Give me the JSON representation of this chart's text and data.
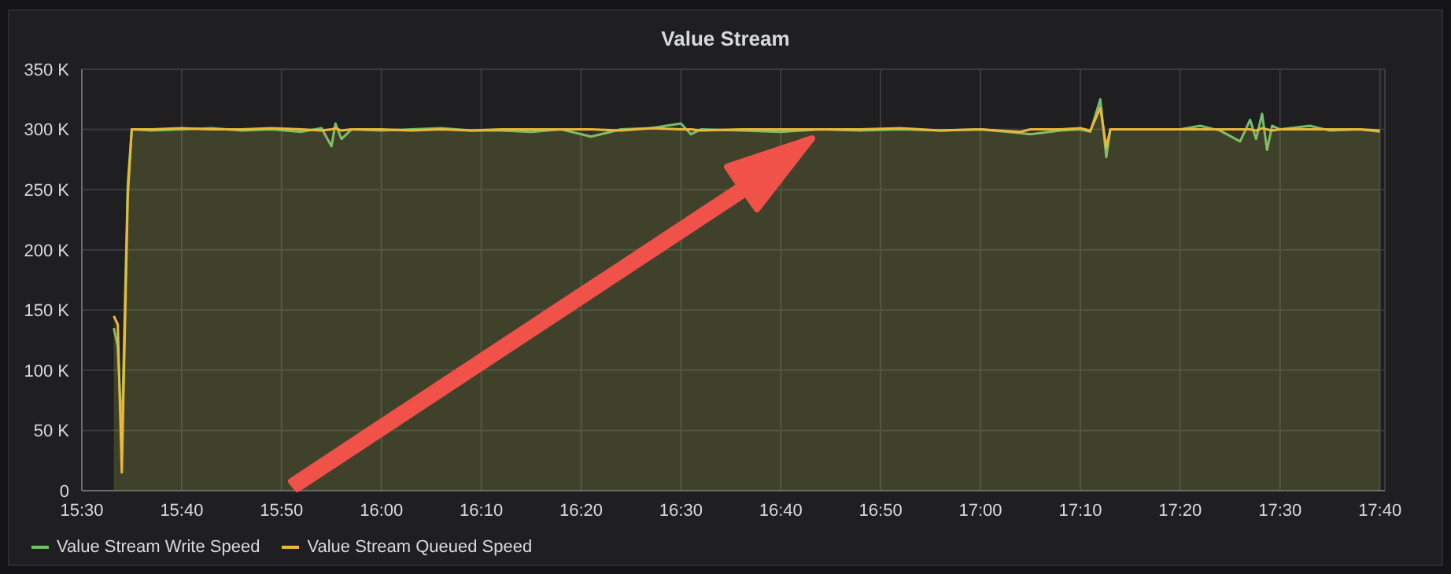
{
  "chart_data": {
    "type": "area",
    "title": "Value Stream",
    "x": [
      15.5533,
      15.56,
      15.5667,
      15.5767,
      15.5833,
      15.6167,
      15.6667,
      15.7167,
      15.7667,
      15.8167,
      15.8667,
      15.9,
      15.9167,
      15.9233,
      15.9333,
      15.95,
      16.0,
      16.05,
      16.1,
      16.15,
      16.2,
      16.25,
      16.3,
      16.35,
      16.4,
      16.45,
      16.5,
      16.5167,
      16.5333,
      16.6,
      16.6667,
      16.7333,
      16.8,
      16.8667,
      16.9333,
      17.0,
      17.0667,
      17.0833,
      17.1333,
      17.1667,
      17.1833,
      17.2,
      17.21,
      17.2167,
      17.2667,
      17.3333,
      17.3667,
      17.4,
      17.4333,
      17.45,
      17.46,
      17.47,
      17.4783,
      17.4867,
      17.5,
      17.55,
      17.5833,
      17.6333,
      17.6667
    ],
    "series": [
      {
        "name": "Value Stream Write Speed",
        "color": "#73bf69",
        "values": [
          135000,
          120000,
          45000,
          255000,
          300000,
          299000,
          300000,
          301000,
          299000,
          300000,
          298000,
          301000,
          286000,
          305000,
          292000,
          300000,
          299000,
          300000,
          301000,
          299000,
          299000,
          298000,
          300000,
          294000,
          300000,
          301000,
          305000,
          296000,
          300000,
          299000,
          298000,
          300000,
          299000,
          300000,
          299000,
          300000,
          297000,
          296000,
          299000,
          300000,
          298000,
          325000,
          277000,
          300000,
          300000,
          300000,
          303000,
          299000,
          290000,
          308000,
          292000,
          313000,
          283000,
          303000,
          300000,
          303000,
          299000,
          300000,
          298000
        ]
      },
      {
        "name": "Value Stream Queued Speed",
        "color": "#eab839",
        "values": [
          145000,
          138000,
          15000,
          245000,
          300000,
          300000,
          301000,
          300000,
          300000,
          301000,
          300000,
          299000,
          300000,
          301000,
          299000,
          300000,
          300000,
          299000,
          300000,
          299000,
          300000,
          300000,
          300000,
          300000,
          299000,
          301000,
          300000,
          300000,
          299000,
          300000,
          300000,
          300000,
          300000,
          301000,
          299000,
          300000,
          298000,
          300000,
          300000,
          301000,
          299000,
          318000,
          285000,
          300000,
          300000,
          300000,
          300000,
          300000,
          300000,
          300000,
          299000,
          301000,
          300000,
          299000,
          300000,
          300000,
          300000,
          300000,
          299000
        ]
      }
    ],
    "xlim": [
      15.5,
      17.675
    ],
    "xticks": [
      {
        "value": 15.5,
        "label": "15:30"
      },
      {
        "value": 15.6667,
        "label": "15:40"
      },
      {
        "value": 15.8333,
        "label": "15:50"
      },
      {
        "value": 16.0,
        "label": "16:00"
      },
      {
        "value": 16.1667,
        "label": "16:10"
      },
      {
        "value": 16.3333,
        "label": "16:20"
      },
      {
        "value": 16.5,
        "label": "16:30"
      },
      {
        "value": 16.6667,
        "label": "16:40"
      },
      {
        "value": 16.8333,
        "label": "16:50"
      },
      {
        "value": 17.0,
        "label": "17:00"
      },
      {
        "value": 17.1667,
        "label": "17:10"
      },
      {
        "value": 17.3333,
        "label": "17:20"
      },
      {
        "value": 17.5,
        "label": "17:30"
      },
      {
        "value": 17.6667,
        "label": "17:40"
      }
    ],
    "ylim": [
      0,
      350000
    ],
    "yticks": [
      0,
      {
        "value": 50000,
        "label": "50 K"
      },
      {
        "value": 100000,
        "label": "100 K"
      },
      {
        "value": 150000,
        "label": "150 K"
      },
      {
        "value": 200000,
        "label": "200 K"
      },
      {
        "value": 250000,
        "label": "250 K"
      },
      {
        "value": 300000,
        "label": "300 K"
      },
      {
        "value": 350000,
        "label": "350 K"
      }
    ],
    "grid": true,
    "legend": "bottom left",
    "marker": "none",
    "line_style": "solid"
  }
}
